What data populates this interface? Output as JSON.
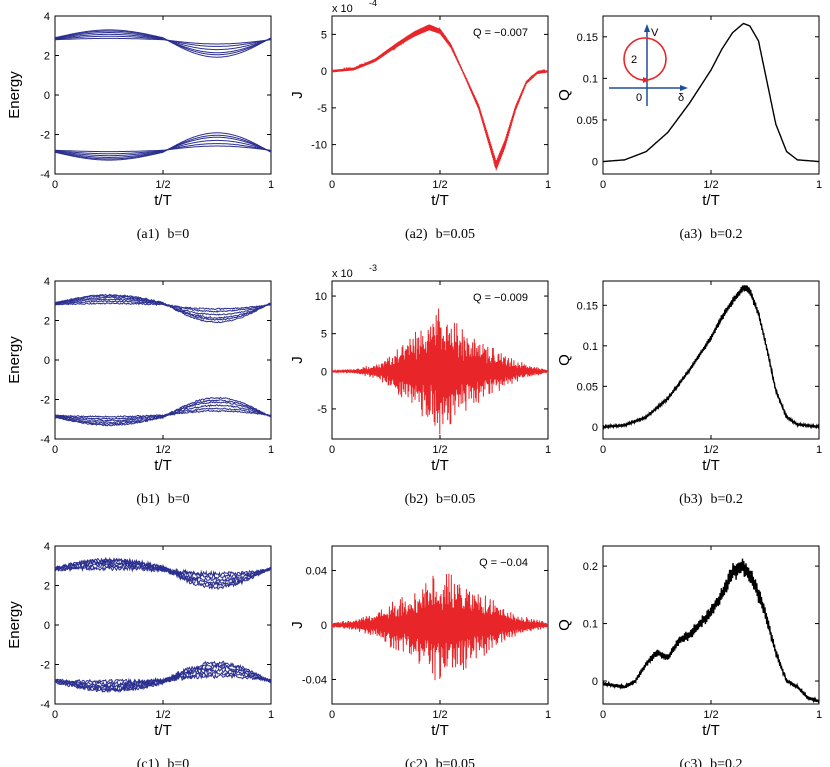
{
  "panels": [
    {
      "id": "a1",
      "caption_tag": "(a1)",
      "caption_b": "b=0",
      "ylabel": "Energy",
      "xlabel": "t/T",
      "y_ticks": [
        "4",
        "2",
        "0",
        "-2",
        "-4"
      ],
      "x_ticks": [
        "0",
        "1/2",
        "1"
      ],
      "exponent": "",
      "annotation": ""
    },
    {
      "id": "a2",
      "caption_tag": "(a2)",
      "caption_b": "b=0.05",
      "ylabel": "J",
      "xlabel": "t/T",
      "y_ticks": [
        "5",
        "0",
        "-5",
        "-10"
      ],
      "x_ticks": [
        "0",
        "1/2",
        "1"
      ],
      "exponent": "x 10",
      "exponent_power": "-4",
      "annotation": "Q = −0.007"
    },
    {
      "id": "a3",
      "caption_tag": "(a3)",
      "caption_b": "b=0.2",
      "ylabel": "Q",
      "xlabel": "t/T",
      "y_ticks": [
        "0.15",
        "0.1",
        "0.05",
        "0"
      ],
      "x_ticks": [
        "0",
        "1/2",
        "1"
      ],
      "exponent": "",
      "annotation": "",
      "inset": {
        "v_label": "V",
        "d_label": "δ",
        "zero_label": "0",
        "center_label": "2"
      }
    },
    {
      "id": "b1",
      "caption_tag": "(b1)",
      "caption_b": "b=0",
      "ylabel": "Energy",
      "xlabel": "t/T",
      "y_ticks": [
        "4",
        "2",
        "0",
        "-2",
        "-4"
      ],
      "x_ticks": [
        "0",
        "1/2",
        "1"
      ],
      "exponent": "",
      "annotation": ""
    },
    {
      "id": "b2",
      "caption_tag": "(b2)",
      "caption_b": "b=0.05",
      "ylabel": "J",
      "xlabel": "t/T",
      "y_ticks": [
        "10",
        "5",
        "0",
        "-5"
      ],
      "x_ticks": [
        "0",
        "1/2",
        "1"
      ],
      "exponent": "x 10",
      "exponent_power": "-3",
      "annotation": "Q = −0.009"
    },
    {
      "id": "b3",
      "caption_tag": "(b3)",
      "caption_b": "b=0.2",
      "ylabel": "Q",
      "xlabel": "t/T",
      "y_ticks": [
        "0.15",
        "0.1",
        "0.05",
        "0"
      ],
      "x_ticks": [
        "0",
        "1/2",
        "1"
      ],
      "exponent": "",
      "annotation": ""
    },
    {
      "id": "c1",
      "caption_tag": "(c1)",
      "caption_b": "b=0",
      "ylabel": "Energy",
      "xlabel": "t/T",
      "y_ticks": [
        "4",
        "2",
        "0",
        "-2",
        "-4"
      ],
      "x_ticks": [
        "0",
        "1/2",
        "1"
      ],
      "exponent": "",
      "annotation": ""
    },
    {
      "id": "c2",
      "caption_tag": "(c2)",
      "caption_b": "b=0.05",
      "ylabel": "J",
      "xlabel": "t/T",
      "y_ticks": [
        "0.04",
        "0",
        "-0.04"
      ],
      "x_ticks": [
        "0",
        "1/2",
        "1"
      ],
      "exponent": "",
      "annotation": "Q = −0.04"
    },
    {
      "id": "c3",
      "caption_tag": "(c3)",
      "caption_b": "b=0.2",
      "ylabel": "Q",
      "xlabel": "t/T",
      "y_ticks": [
        "0.2",
        "0.1",
        "0"
      ],
      "x_ticks": [
        "0",
        "1/2",
        "1"
      ],
      "exponent": "",
      "annotation": ""
    }
  ],
  "chart_data": [
    {
      "id": "a1",
      "type": "line",
      "color": "#2b2f8f",
      "xlim": [
        0,
        1
      ],
      "ylim": [
        -4,
        4
      ],
      "noise": 0,
      "series_def": {
        "upper": {
          "base": 2.8,
          "first_half_amp": [
            0.12,
            0.28,
            0.42,
            0.55,
            0.65,
            0.72
          ],
          "second_half_amp": [
            0.18,
            0.3,
            0.45,
            0.6,
            0.7,
            0.82
          ]
        },
        "lower": {
          "base": -2.8,
          "first_half_amp": [
            0.12,
            0.28,
            0.42,
            0.55,
            0.65,
            0.72
          ],
          "second_half_amp": [
            0.18,
            0.3,
            0.45,
            0.6,
            0.7,
            0.82
          ]
        }
      }
    },
    {
      "id": "a2",
      "type": "line",
      "color": "#e8262a",
      "xlim": [
        0,
        1
      ],
      "ylim": [
        -14,
        7.5
      ],
      "scale": "1e-4",
      "noise": 0.6,
      "envelope": [
        [
          0,
          0
        ],
        [
          0.1,
          0.3
        ],
        [
          0.2,
          1.5
        ],
        [
          0.3,
          3.5
        ],
        [
          0.38,
          5.0
        ],
        [
          0.45,
          6.0
        ],
        [
          0.5,
          5.5
        ],
        [
          0.55,
          3.5
        ],
        [
          0.62,
          -1
        ],
        [
          0.68,
          -5
        ],
        [
          0.73,
          -10
        ],
        [
          0.76,
          -13
        ],
        [
          0.8,
          -10
        ],
        [
          0.85,
          -5
        ],
        [
          0.9,
          -1.5
        ],
        [
          0.95,
          -0.2
        ],
        [
          1,
          0
        ]
      ]
    },
    {
      "id": "a3",
      "type": "line",
      "color": "#000000",
      "xlim": [
        0,
        1
      ],
      "ylim": [
        -0.015,
        0.175
      ],
      "noise": 0,
      "envelope": [
        [
          0,
          0
        ],
        [
          0.1,
          0.002
        ],
        [
          0.2,
          0.012
        ],
        [
          0.3,
          0.035
        ],
        [
          0.4,
          0.07
        ],
        [
          0.5,
          0.11
        ],
        [
          0.55,
          0.135
        ],
        [
          0.6,
          0.155
        ],
        [
          0.65,
          0.166
        ],
        [
          0.68,
          0.163
        ],
        [
          0.72,
          0.145
        ],
        [
          0.76,
          0.095
        ],
        [
          0.8,
          0.045
        ],
        [
          0.85,
          0.012
        ],
        [
          0.9,
          0.002
        ],
        [
          1,
          0
        ]
      ],
      "inset_circle": {
        "center": [
          0,
          2
        ],
        "radius": 1,
        "axes": [
          "δ",
          "V"
        ]
      }
    },
    {
      "id": "b1",
      "type": "line",
      "color": "#2b2f8f",
      "xlim": [
        0,
        1
      ],
      "ylim": [
        -4,
        4
      ],
      "noise": 0.04,
      "series_def": {
        "upper": {
          "base": 2.8,
          "first_half_amp": [
            0.12,
            0.28,
            0.42,
            0.55,
            0.65,
            0.72
          ],
          "second_half_amp": [
            0.18,
            0.3,
            0.45,
            0.6,
            0.7,
            0.82
          ]
        },
        "lower": {
          "base": -2.8,
          "first_half_amp": [
            0.12,
            0.28,
            0.42,
            0.55,
            0.65,
            0.72
          ],
          "second_half_amp": [
            0.18,
            0.3,
            0.45,
            0.6,
            0.7,
            0.82
          ]
        }
      }
    },
    {
      "id": "b2",
      "type": "line",
      "color": "#e8262a",
      "xlim": [
        0,
        1
      ],
      "ylim": [
        -9,
        12
      ],
      "scale": "1e-3",
      "noise": 1,
      "envelope": [
        [
          0,
          0.1
        ],
        [
          0.1,
          0.3
        ],
        [
          0.2,
          1
        ],
        [
          0.3,
          3
        ],
        [
          0.4,
          6
        ],
        [
          0.5,
          9
        ],
        [
          0.55,
          8
        ],
        [
          0.6,
          6
        ],
        [
          0.7,
          4
        ],
        [
          0.8,
          2.5
        ],
        [
          0.9,
          1
        ],
        [
          1,
          0.2
        ]
      ]
    },
    {
      "id": "b3",
      "type": "line",
      "color": "#000000",
      "xlim": [
        0,
        1
      ],
      "ylim": [
        -0.015,
        0.18
      ],
      "noise": 0.004,
      "envelope": [
        [
          0,
          0
        ],
        [
          0.1,
          0.002
        ],
        [
          0.2,
          0.012
        ],
        [
          0.3,
          0.035
        ],
        [
          0.4,
          0.07
        ],
        [
          0.5,
          0.11
        ],
        [
          0.55,
          0.135
        ],
        [
          0.6,
          0.155
        ],
        [
          0.65,
          0.172
        ],
        [
          0.68,
          0.168
        ],
        [
          0.72,
          0.14
        ],
        [
          0.76,
          0.095
        ],
        [
          0.8,
          0.045
        ],
        [
          0.85,
          0.012
        ],
        [
          0.9,
          0.003
        ],
        [
          1,
          0
        ]
      ]
    },
    {
      "id": "c1",
      "type": "line",
      "color": "#2b2f8f",
      "xlim": [
        0,
        1
      ],
      "ylim": [
        -4,
        4
      ],
      "noise": 0.12,
      "series_def": {
        "upper": {
          "base": 2.8,
          "first_half_amp": [
            0.12,
            0.28,
            0.42,
            0.55,
            0.65,
            0.72
          ],
          "second_half_amp": [
            0.18,
            0.3,
            0.45,
            0.6,
            0.7,
            0.82
          ]
        },
        "lower": {
          "base": -2.8,
          "first_half_amp": [
            0.12,
            0.28,
            0.42,
            0.55,
            0.65,
            0.72
          ],
          "second_half_amp": [
            0.18,
            0.3,
            0.45,
            0.6,
            0.7,
            0.82
          ]
        }
      }
    },
    {
      "id": "c2",
      "type": "line",
      "color": "#e8262a",
      "xlim": [
        0,
        1
      ],
      "ylim": [
        -0.058,
        0.058
      ],
      "noise": 1,
      "envelope": [
        [
          0,
          0.002
        ],
        [
          0.1,
          0.004
        ],
        [
          0.2,
          0.01
        ],
        [
          0.3,
          0.02
        ],
        [
          0.4,
          0.03
        ],
        [
          0.5,
          0.045
        ],
        [
          0.55,
          0.04
        ],
        [
          0.6,
          0.035
        ],
        [
          0.7,
          0.025
        ],
        [
          0.8,
          0.012
        ],
        [
          0.9,
          0.006
        ],
        [
          1,
          0.002
        ]
      ]
    },
    {
      "id": "c3",
      "type": "line",
      "color": "#000000",
      "xlim": [
        0,
        1
      ],
      "ylim": [
        -0.04,
        0.235
      ],
      "noise": 0.012,
      "envelope": [
        [
          0,
          -0.005
        ],
        [
          0.1,
          -0.01
        ],
        [
          0.15,
          0
        ],
        [
          0.2,
          0.03
        ],
        [
          0.25,
          0.05
        ],
        [
          0.3,
          0.04
        ],
        [
          0.35,
          0.07
        ],
        [
          0.4,
          0.08
        ],
        [
          0.45,
          0.1
        ],
        [
          0.5,
          0.12
        ],
        [
          0.55,
          0.15
        ],
        [
          0.6,
          0.19
        ],
        [
          0.65,
          0.2
        ],
        [
          0.7,
          0.17
        ],
        [
          0.75,
          0.12
        ],
        [
          0.8,
          0.05
        ],
        [
          0.85,
          0.0
        ],
        [
          0.9,
          -0.01
        ],
        [
          0.95,
          -0.03
        ],
        [
          1,
          -0.035
        ]
      ]
    }
  ]
}
